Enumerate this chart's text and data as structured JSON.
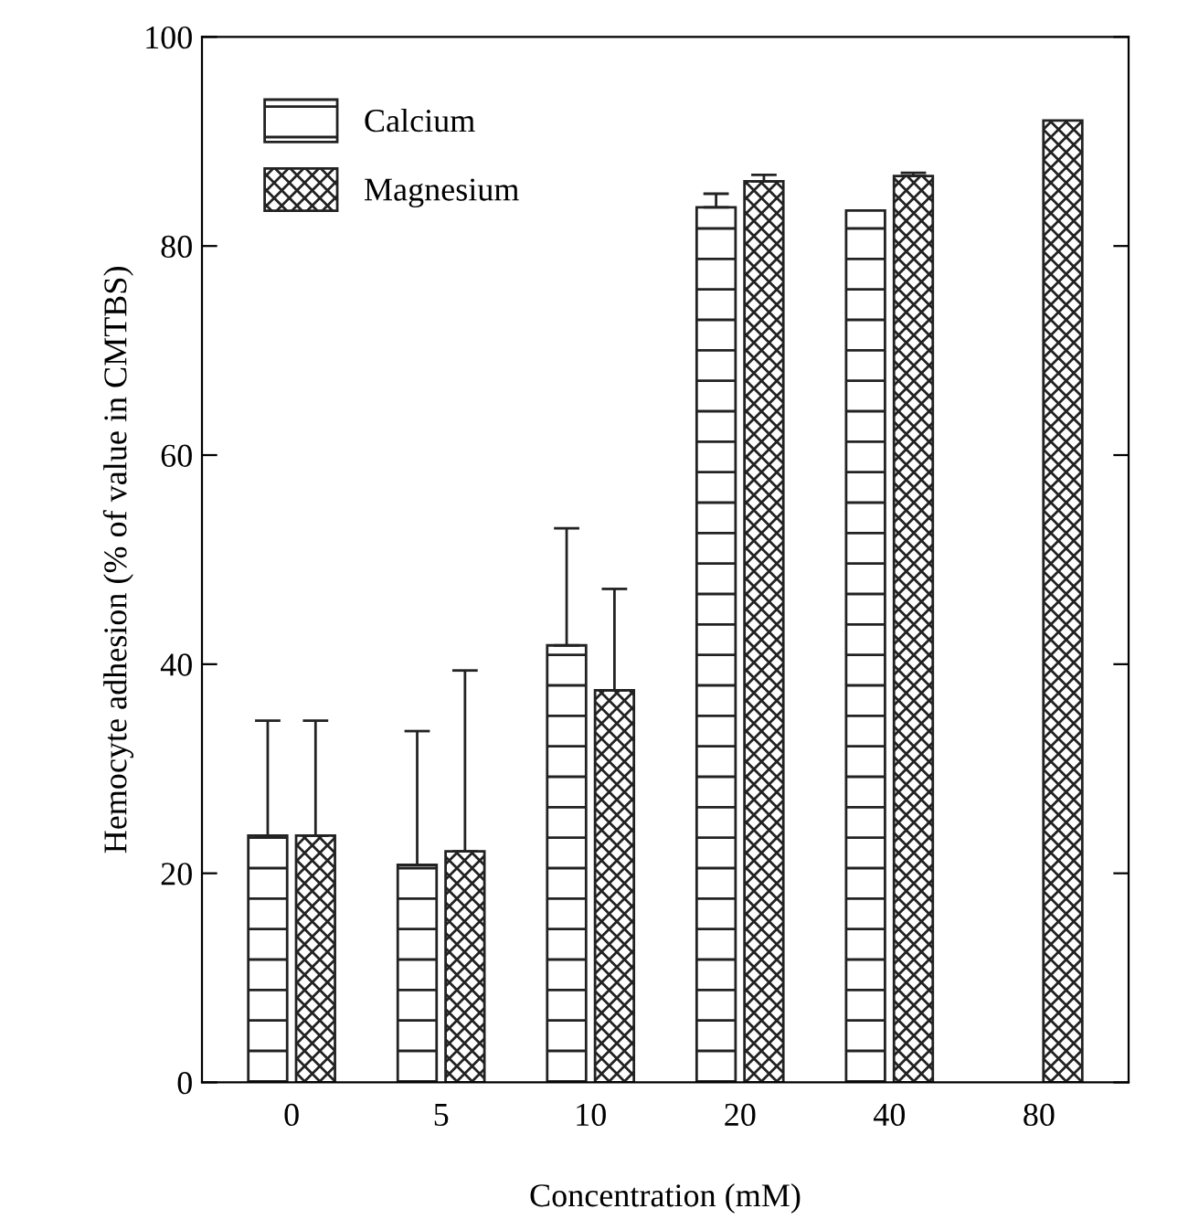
{
  "chart_data": {
    "type": "bar",
    "xlabel": "Concentration (mM)",
    "ylabel": "Hemocyte adhesion (% of value in CMTBS)",
    "categories": [
      "0",
      "5",
      "10",
      "20",
      "40",
      "80"
    ],
    "series": [
      {
        "name": "Calcium",
        "color": "#222222",
        "values": [
          23.6,
          20.8,
          41.8,
          83.7,
          83.4,
          null
        ],
        "errors": [
          11.0,
          12.8,
          11.2,
          1.3,
          null,
          null
        ]
      },
      {
        "name": "Magnesium",
        "color": "#222222",
        "values": [
          23.6,
          22.1,
          37.5,
          86.2,
          86.7,
          92.0
        ],
        "errors": [
          11.0,
          17.3,
          9.7,
          0.6,
          0.3,
          null
        ]
      }
    ],
    "ylim": [
      0,
      100
    ],
    "yticks": [
      0,
      20,
      40,
      60,
      80,
      100
    ],
    "legend": "top left",
    "grid": false
  }
}
